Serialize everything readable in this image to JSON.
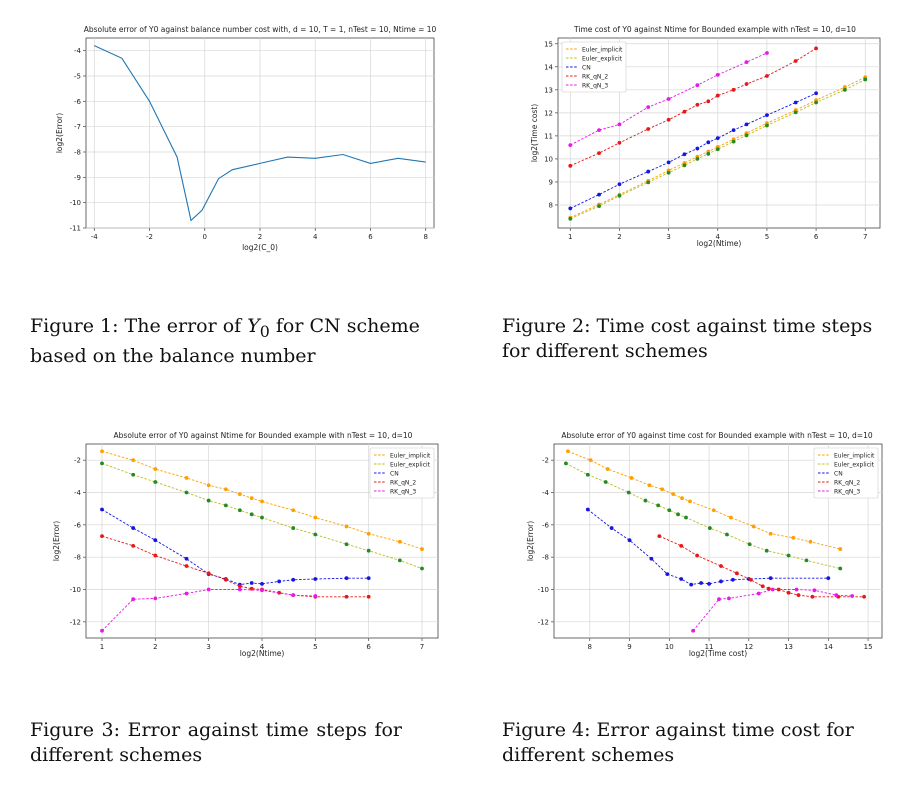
{
  "colors": {
    "line": "#1f77b4",
    "grid": "#d6d6d6",
    "Euler_implicit": "#ff9f00",
    "Euler_explicit": "#bcbd22",
    "CN": "#1515e6",
    "RK_qN_2": "#e61919",
    "RK_qN_3": "#e619e6",
    "Euler_explicit_marker": "#228b22"
  },
  "chart_data": [
    {
      "id": "fig1",
      "type": "line",
      "title": "Absolute error of Y0 against balance number cost with, d = 10, T = 1, nTest = 10, Ntime = 10",
      "xlabel": "log2(C_0)",
      "ylabel": "log2(Error)",
      "xlim": [
        -4.3,
        8.3
      ],
      "ylim": [
        -11,
        -3.5
      ],
      "xticks": [
        -4,
        -2,
        0,
        2,
        4,
        6,
        8
      ],
      "yticks": [
        -11,
        -10,
        -9,
        -8,
        -7,
        -6,
        -5,
        -4
      ],
      "series": [
        {
          "name": "error",
          "x": [
            -4,
            -3,
            -2,
            -1,
            -0.5,
            -0.1,
            0.5,
            1,
            2,
            3,
            4,
            5,
            6,
            7,
            8
          ],
          "y": [
            -3.8,
            -4.3,
            -6.0,
            -8.2,
            -10.7,
            -10.3,
            -9.05,
            -8.7,
            -8.45,
            -8.2,
            -8.25,
            -8.1,
            -8.45,
            -8.25,
            -8.4
          ],
          "markers": false
        }
      ]
    },
    {
      "id": "fig2",
      "type": "line",
      "title": "Time cost of Y0 against Ntime for Bounded example with nTest = 10, d=10",
      "xlabel": "log2(Ntime)",
      "ylabel": "log2(Time cost)",
      "xlim": [
        0.75,
        7.3
      ],
      "ylim": [
        7.0,
        15.25
      ],
      "xticks": [
        1,
        2,
        3,
        4,
        5,
        6,
        7
      ],
      "yticks": [
        8,
        9,
        10,
        11,
        12,
        13,
        14,
        15
      ],
      "legend": "top-left",
      "series": [
        {
          "name": "Euler_implicit",
          "x": [
            1,
            1.585,
            2,
            2.585,
            3,
            3.322,
            3.585,
            3.807,
            4,
            4.322,
            4.585,
            5,
            5.585,
            6,
            6.585,
            7
          ],
          "y": [
            7.45,
            8.02,
            8.45,
            9.05,
            9.5,
            9.82,
            10.1,
            10.32,
            10.52,
            10.85,
            11.12,
            11.55,
            12.12,
            12.55,
            13.12,
            13.55
          ]
        },
        {
          "name": "Euler_explicit",
          "x": [
            1,
            1.585,
            2,
            2.585,
            3,
            3.322,
            3.585,
            3.807,
            4,
            4.322,
            4.585,
            5,
            5.585,
            6,
            6.585,
            7
          ],
          "y": [
            7.4,
            7.95,
            8.4,
            8.98,
            9.4,
            9.72,
            10.0,
            10.22,
            10.42,
            10.75,
            11.02,
            11.45,
            12.02,
            12.45,
            13.0,
            13.45
          ]
        },
        {
          "name": "CN",
          "x": [
            1,
            1.585,
            2,
            2.585,
            3,
            3.322,
            3.585,
            3.807,
            4,
            4.322,
            4.585,
            5,
            5.585,
            6
          ],
          "y": [
            7.85,
            8.45,
            8.9,
            9.45,
            9.85,
            10.2,
            10.45,
            10.72,
            10.9,
            11.25,
            11.5,
            11.9,
            12.45,
            12.85
          ]
        },
        {
          "name": "RK_qN_2",
          "x": [
            1,
            1.585,
            2,
            2.585,
            3,
            3.322,
            3.585,
            3.807,
            4,
            4.322,
            4.585,
            5,
            5.585,
            6
          ],
          "y": [
            9.7,
            10.25,
            10.7,
            11.3,
            11.7,
            12.05,
            12.35,
            12.5,
            12.75,
            13.0,
            13.25,
            13.6,
            14.25,
            14.8
          ]
        },
        {
          "name": "RK_qN_3",
          "x": [
            1,
            1.585,
            2,
            2.585,
            3,
            3.585,
            4,
            4.585,
            5
          ],
          "y": [
            10.6,
            11.25,
            11.5,
            12.25,
            12.6,
            13.2,
            13.65,
            14.2,
            14.6
          ]
        }
      ]
    },
    {
      "id": "fig3",
      "type": "line",
      "title": "Absolute error of Y0 against Ntime for Bounded example with nTest = 10, d=10",
      "xlabel": "log2(Ntime)",
      "ylabel": "log2(Error)",
      "xlim": [
        0.7,
        7.3
      ],
      "ylim": [
        -13,
        -1
      ],
      "xticks": [
        1,
        2,
        3,
        4,
        5,
        6,
        7
      ],
      "yticks": [
        -12,
        -10,
        -8,
        -6,
        -4,
        -2
      ],
      "legend": "top-right",
      "series": [
        {
          "name": "Euler_implicit",
          "x": [
            1,
            1.585,
            2,
            2.585,
            3,
            3.322,
            3.585,
            3.807,
            4,
            4.585,
            5,
            5.585,
            6,
            6.585,
            7
          ],
          "y": [
            -1.45,
            -2.0,
            -2.55,
            -3.1,
            -3.55,
            -3.8,
            -4.1,
            -4.35,
            -4.55,
            -5.1,
            -5.55,
            -6.1,
            -6.55,
            -7.05,
            -7.5
          ]
        },
        {
          "name": "Euler_explicit",
          "x": [
            1,
            1.585,
            2,
            2.585,
            3,
            3.322,
            3.585,
            3.807,
            4,
            4.585,
            5,
            5.585,
            6,
            6.585,
            7
          ],
          "y": [
            -2.2,
            -2.9,
            -3.35,
            -4.0,
            -4.5,
            -4.8,
            -5.1,
            -5.35,
            -5.55,
            -6.2,
            -6.6,
            -7.2,
            -7.6,
            -8.2,
            -8.7
          ]
        },
        {
          "name": "CN",
          "x": [
            1,
            1.585,
            2,
            2.585,
            3,
            3.322,
            3.585,
            3.807,
            4,
            4.322,
            4.585,
            5,
            5.585,
            6
          ],
          "y": [
            -5.05,
            -6.2,
            -6.95,
            -8.1,
            -9.05,
            -9.35,
            -9.7,
            -9.6,
            -9.65,
            -9.5,
            -9.4,
            -9.35,
            -9.3,
            -9.3
          ]
        },
        {
          "name": "RK_qN_2",
          "x": [
            1,
            1.585,
            2,
            2.585,
            3,
            3.322,
            3.585,
            3.807,
            4,
            4.322,
            4.585,
            5,
            5.585,
            6
          ],
          "y": [
            -6.7,
            -7.3,
            -7.9,
            -8.55,
            -9.0,
            -9.4,
            -9.8,
            -9.95,
            -10.0,
            -10.2,
            -10.35,
            -10.45,
            -10.45,
            -10.45
          ]
        },
        {
          "name": "RK_qN_3",
          "x": [
            1,
            1.585,
            2,
            2.585,
            3,
            3.585,
            4,
            4.585,
            5
          ],
          "y": [
            -12.55,
            -10.6,
            -10.55,
            -10.25,
            -10.0,
            -10.0,
            -10.05,
            -10.35,
            -10.4
          ]
        }
      ]
    },
    {
      "id": "fig4",
      "type": "line",
      "title": "Absolute error of Y0 against time cost for Bounded example with nTest = 10, d=10",
      "xlabel": "log2(Time cost)",
      "ylabel": "log2(Error)",
      "xlim": [
        7.1,
        15.35
      ],
      "ylim": [
        -13,
        -1
      ],
      "xticks": [
        8,
        9,
        10,
        11,
        12,
        13,
        14,
        15
      ],
      "yticks": [
        -12,
        -10,
        -8,
        -6,
        -4,
        -2
      ],
      "legend": "top-right",
      "series": [
        {
          "name": "Euler_implicit",
          "x": [
            7.45,
            8.02,
            8.45,
            9.05,
            9.5,
            9.82,
            10.1,
            10.32,
            10.52,
            11.12,
            11.55,
            12.12,
            12.55,
            13.12,
            13.55,
            14.3
          ],
          "y": [
            -1.45,
            -2.0,
            -2.55,
            -3.1,
            -3.55,
            -3.8,
            -4.1,
            -4.35,
            -4.55,
            -5.1,
            -5.55,
            -6.1,
            -6.55,
            -6.8,
            -7.05,
            -7.5
          ]
        },
        {
          "name": "Euler_explicit",
          "x": [
            7.4,
            7.95,
            8.4,
            8.98,
            9.4,
            9.72,
            10.0,
            10.22,
            10.42,
            11.02,
            11.45,
            12.02,
            12.45,
            13.0,
            13.45,
            14.3
          ],
          "y": [
            -2.2,
            -2.9,
            -3.35,
            -4.0,
            -4.5,
            -4.8,
            -5.1,
            -5.35,
            -5.55,
            -6.2,
            -6.6,
            -7.2,
            -7.6,
            -7.9,
            -8.2,
            -8.7
          ]
        },
        {
          "name": "CN",
          "x": [
            7.95,
            8.55,
            9.0,
            9.55,
            9.95,
            10.3,
            10.55,
            10.8,
            11.0,
            11.3,
            11.6,
            12.0,
            12.55,
            14.0
          ],
          "y": [
            -5.05,
            -6.2,
            -6.95,
            -8.1,
            -9.05,
            -9.35,
            -9.7,
            -9.6,
            -9.65,
            -9.5,
            -9.4,
            -9.35,
            -9.3,
            -9.3
          ]
        },
        {
          "name": "RK_qN_2",
          "x": [
            9.75,
            10.3,
            10.7,
            11.3,
            11.7,
            12.05,
            12.35,
            12.5,
            12.75,
            13.0,
            13.25,
            13.6,
            14.25,
            14.9
          ],
          "y": [
            -6.7,
            -7.3,
            -7.9,
            -8.55,
            -9.0,
            -9.4,
            -9.8,
            -9.95,
            -10.0,
            -10.2,
            -10.35,
            -10.45,
            -10.45,
            -10.45
          ]
        },
        {
          "name": "RK_qN_3",
          "x": [
            10.6,
            11.25,
            11.5,
            12.25,
            12.6,
            13.2,
            13.65,
            14.2,
            14.6
          ],
          "y": [
            -12.55,
            -10.6,
            -10.55,
            -10.25,
            -10.0,
            -10.0,
            -10.05,
            -10.35,
            -10.4
          ]
        }
      ]
    }
  ],
  "captions": [
    {
      "prefix": "Figure 1:  The error of ",
      "math": "Y",
      "sub": "0",
      "suffix": " for CN scheme based on the balance number"
    },
    {
      "text": "Figure 2:  Time cost against time steps for different schemes"
    },
    {
      "text": "Figure 3:  Error against time steps for different schemes"
    },
    {
      "text": "Figure 4: Error against time cost for different schemes"
    }
  ]
}
